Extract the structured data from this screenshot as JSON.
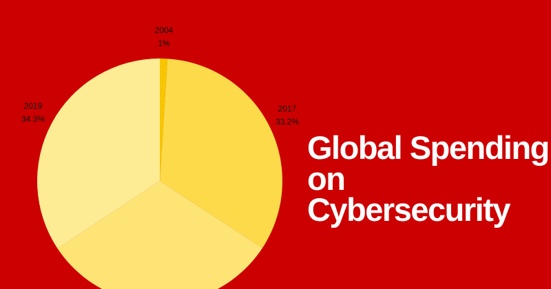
{
  "chart_data": {
    "type": "pie",
    "title": "Global Spending on Cybersecurity",
    "categories": [
      "2004",
      "2017",
      null,
      "2019"
    ],
    "values": [
      1,
      33.2,
      31.5,
      34.3
    ],
    "value_labels": [
      "1%",
      "33.2%",
      null,
      "34.3%"
    ],
    "colors": [
      "#f7c600",
      "#fdda4a",
      "#fee475",
      "#feec95"
    ]
  }
}
